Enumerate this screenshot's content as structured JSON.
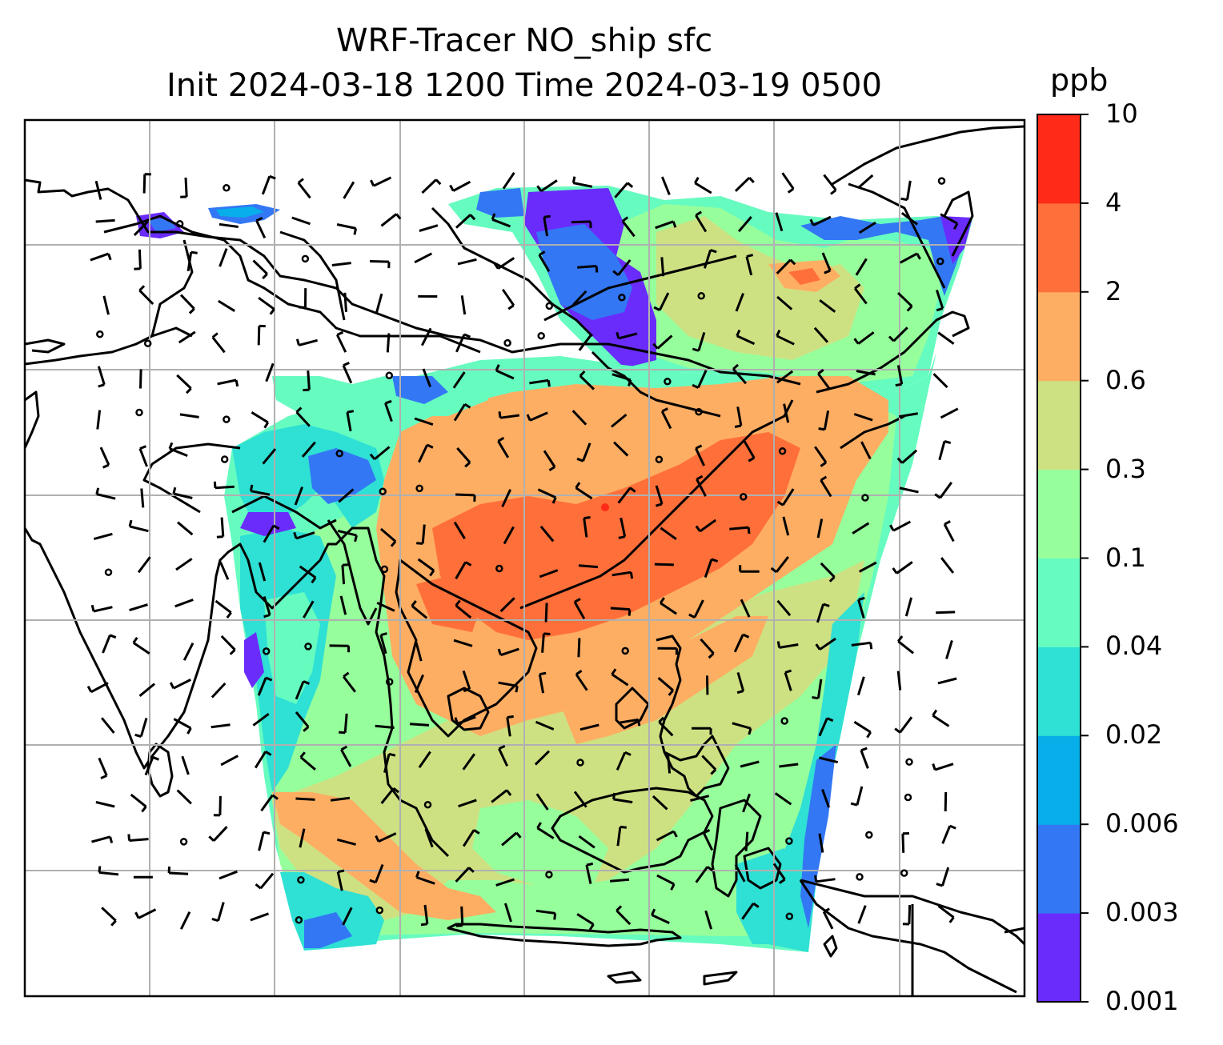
{
  "title": {
    "line1": "WRF-Tracer NO_ship sfc",
    "line2": "Init 2024-03-18 1200 Time 2024-03-19 0500"
  },
  "colorbar": {
    "unit": "ppb",
    "levels": [
      "0.001",
      "0.003",
      "0.006",
      "0.02",
      "0.04",
      "0.1",
      "0.3",
      "0.6",
      "2",
      "4",
      "10"
    ],
    "colors": [
      "#6a2cfb",
      "#3377f4",
      "#08aeea",
      "#2fe0d4",
      "#66fcc0",
      "#97fe9c",
      "#cde182",
      "#feae63",
      "#ff6f3a",
      "#ff2a17"
    ]
  },
  "map": {
    "gridlines": true,
    "layers": [
      "coastlines",
      "country-borders",
      "tracer-concentration",
      "wind-barbs"
    ]
  }
}
